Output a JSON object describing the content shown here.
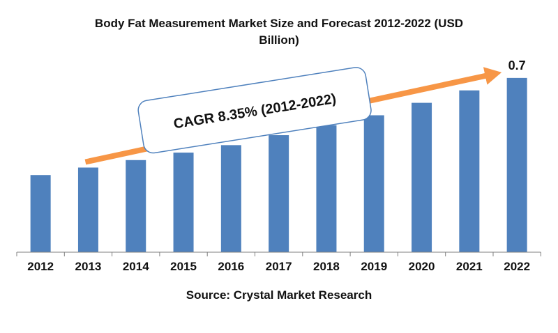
{
  "title_line1": "Body Fat Measurement Market Size and Forecast 2012-2022 (USD",
  "title_line2": "Billion)",
  "source": "Source: Crystal Market Research",
  "cagr_label": "CAGR 8.35% (2012-2022)",
  "colors": {
    "bar": "#4f81bd",
    "arrow": "#f79646",
    "axis": "#7f7f7f",
    "callout_border": "#4f81bd"
  },
  "chart_data": {
    "type": "bar",
    "categories": [
      "2012",
      "2013",
      "2014",
      "2015",
      "2016",
      "2017",
      "2018",
      "2019",
      "2020",
      "2021",
      "2022"
    ],
    "values": [
      0.31,
      0.34,
      0.37,
      0.4,
      0.43,
      0.47,
      0.51,
      0.55,
      0.6,
      0.65,
      0.7
    ],
    "data_labels": {
      "2022": "0.7"
    },
    "title": "Body Fat Measurement Market Size and Forecast 2012-2022 (USD Billion)",
    "xlabel": "",
    "ylabel": "",
    "ylim": [
      0,
      0.75
    ],
    "grid": false,
    "legend": "none"
  }
}
